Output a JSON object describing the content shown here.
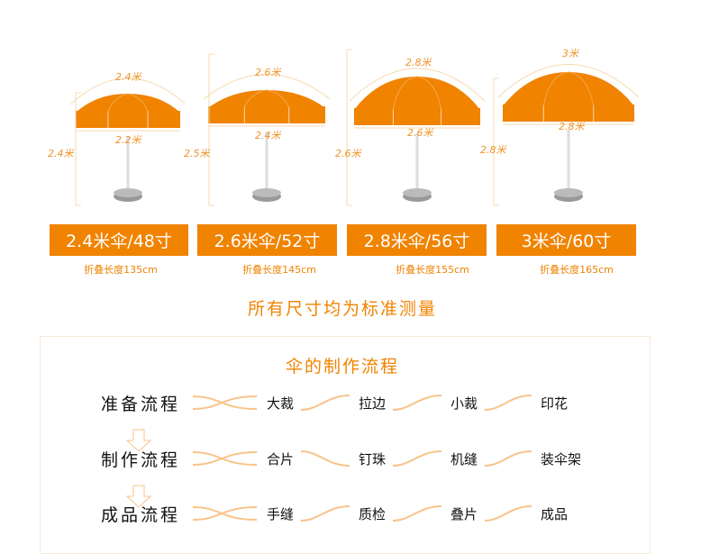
{
  "umbrellas": [
    {
      "arc": "2.4米",
      "width": "2.2米",
      "height": "2.4米",
      "label": "2.4米伞/48寸",
      "folded": "折叠长度135cm"
    },
    {
      "arc": "2.6米",
      "width": "2.4米",
      "height": "2.5米",
      "label": "2.6米伞/52寸",
      "folded": "折叠长度145cm"
    },
    {
      "arc": "2.8米",
      "width": "2.6米",
      "height": "2.6米",
      "label": "2.8米伞/56寸",
      "folded": "折叠长度155cm"
    },
    {
      "arc": "3米",
      "width": "2.8米",
      "height": "2.8米",
      "label": "3米伞/60寸",
      "folded": "折叠长度165cm"
    }
  ],
  "subtitle": "所有尺寸均为标准测量",
  "process": {
    "title": "伞的制作流程",
    "rows": [
      {
        "label": "准备流程",
        "steps": [
          "大裁",
          "拉边",
          "小裁",
          "印花"
        ]
      },
      {
        "label": "制作流程",
        "steps": [
          "合片",
          "钉珠",
          "机缝",
          "装伞架"
        ]
      },
      {
        "label": "成品流程",
        "steps": [
          "手缝",
          "质检",
          "叠片",
          "成品"
        ]
      }
    ]
  },
  "colors": {
    "accent": "#f08300",
    "light": "#f7c48a"
  }
}
